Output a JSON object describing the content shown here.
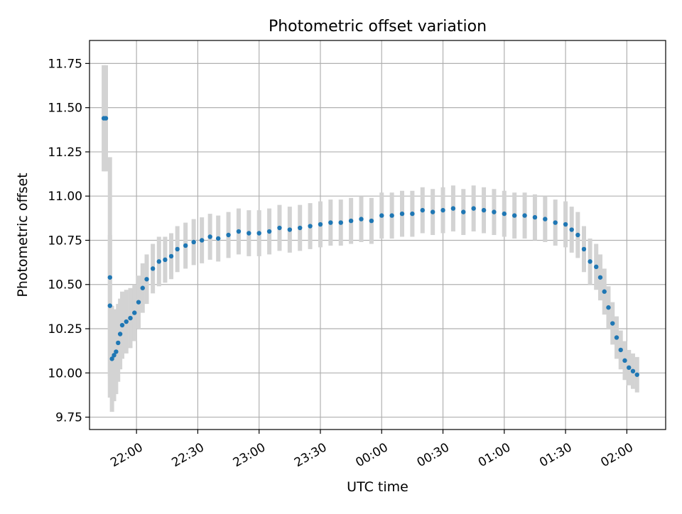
{
  "chart_data": {
    "type": "scatter",
    "title": "Photometric offset variation",
    "xlabel": "UTC time",
    "ylabel": "Photometric offset",
    "x_axis": "time (UTC, night crossing midnight)",
    "xlim": [
      "21:37",
      "02:19"
    ],
    "ylim": [
      9.68,
      11.88
    ],
    "xticks": [
      "22:00",
      "22:30",
      "23:00",
      "23:30",
      "00:00",
      "00:30",
      "01:00",
      "01:30",
      "02:00"
    ],
    "yticks": [
      "9.75",
      "10.00",
      "10.25",
      "10.50",
      "10.75",
      "11.00",
      "11.25",
      "11.50",
      "11.75"
    ],
    "grid": true,
    "colors": {
      "points": "#1f77b4",
      "errorbars": "#d3d3d3",
      "grid": "#b0b0b0"
    },
    "series": [
      {
        "x": [
          "21:44",
          "21:45",
          "21:47",
          "21:47",
          "21:48",
          "21:49",
          "21:50",
          "21:51",
          "21:52",
          "21:53",
          "21:55",
          "21:57",
          "21:59",
          "22:01",
          "22:03",
          "22:05",
          "22:08",
          "22:11",
          "22:14",
          "22:17",
          "22:20",
          "22:24",
          "22:28",
          "22:32",
          "22:36",
          "22:40",
          "22:45",
          "22:50",
          "22:55",
          "23:00",
          "23:05",
          "23:10",
          "23:15",
          "23:20",
          "23:25",
          "23:30",
          "23:35",
          "23:40",
          "23:45",
          "23:50",
          "23:55",
          "00:00",
          "00:05",
          "00:10",
          "00:15",
          "00:20",
          "00:25",
          "00:30",
          "00:35",
          "00:40",
          "00:45",
          "00:50",
          "00:55",
          "01:00",
          "01:05",
          "01:10",
          "01:15",
          "01:20",
          "01:25",
          "01:30",
          "01:33",
          "01:36",
          "01:39",
          "01:42",
          "01:45",
          "01:47",
          "01:49",
          "01:51",
          "01:53",
          "01:55",
          "01:57",
          "01:59",
          "02:01",
          "02:03",
          "02:05"
        ],
        "y": [
          11.44,
          11.44,
          10.54,
          10.38,
          10.08,
          10.1,
          10.12,
          10.17,
          10.22,
          10.27,
          10.29,
          10.31,
          10.34,
          10.4,
          10.48,
          10.53,
          10.59,
          10.63,
          10.64,
          10.66,
          10.7,
          10.72,
          10.74,
          10.75,
          10.77,
          10.76,
          10.78,
          10.8,
          10.79,
          10.79,
          10.8,
          10.82,
          10.81,
          10.82,
          10.83,
          10.84,
          10.85,
          10.85,
          10.86,
          10.87,
          10.86,
          10.89,
          10.89,
          10.9,
          10.9,
          10.92,
          10.91,
          10.92,
          10.93,
          10.91,
          10.93,
          10.92,
          10.91,
          10.9,
          10.89,
          10.89,
          10.88,
          10.87,
          10.85,
          10.84,
          10.81,
          10.78,
          10.7,
          10.63,
          10.6,
          10.54,
          10.46,
          10.37,
          10.28,
          10.2,
          10.13,
          10.07,
          10.03,
          10.01,
          9.99
        ],
        "err": [
          0.3,
          0.3,
          0.68,
          0.4,
          0.3,
          0.26,
          0.24,
          0.22,
          0.2,
          0.19,
          0.18,
          0.17,
          0.16,
          0.15,
          0.14,
          0.14,
          0.14,
          0.14,
          0.13,
          0.13,
          0.13,
          0.13,
          0.13,
          0.13,
          0.13,
          0.13,
          0.13,
          0.13,
          0.13,
          0.13,
          0.13,
          0.13,
          0.13,
          0.13,
          0.13,
          0.13,
          0.13,
          0.13,
          0.13,
          0.13,
          0.13,
          0.13,
          0.13,
          0.13,
          0.13,
          0.13,
          0.13,
          0.13,
          0.13,
          0.13,
          0.13,
          0.13,
          0.13,
          0.13,
          0.13,
          0.13,
          0.13,
          0.13,
          0.13,
          0.13,
          0.13,
          0.13,
          0.13,
          0.13,
          0.13,
          0.13,
          0.13,
          0.12,
          0.12,
          0.12,
          0.11,
          0.11,
          0.1,
          0.1,
          0.1
        ]
      }
    ]
  }
}
